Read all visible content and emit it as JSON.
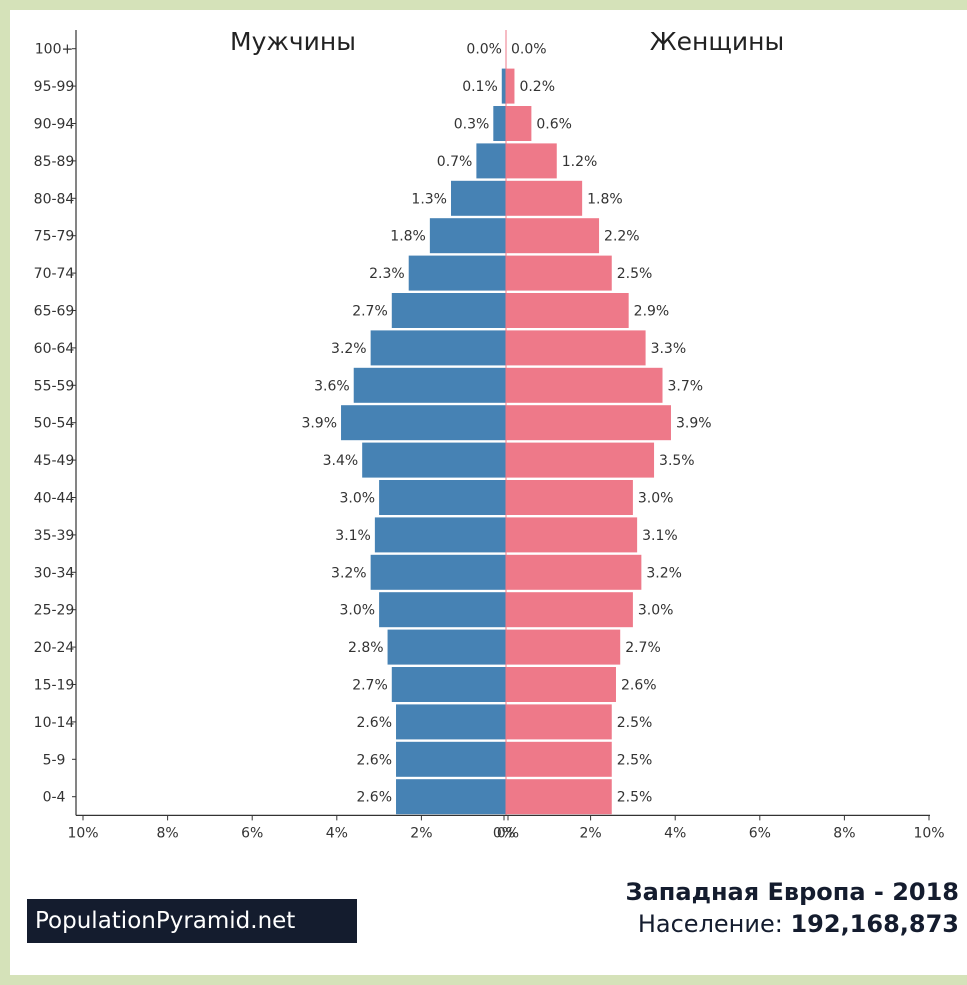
{
  "header": {
    "male_label": "Мужчины",
    "female_label": "Женщины"
  },
  "footer": {
    "brand": "PopulationPyramid.net",
    "title": "Западная Европа - 2018",
    "population_label": "Население:",
    "population_value": "192,168,873"
  },
  "colors": {
    "male": "#4682b4",
    "female": "#ee7989",
    "background": "#d5e2b9",
    "brand_bg": "#141c2e"
  },
  "chart_data": {
    "type": "bar",
    "orientation": "horizontal-pyramid",
    "categories": [
      "100+",
      "95-99",
      "90-94",
      "85-89",
      "80-84",
      "75-79",
      "70-74",
      "65-69",
      "60-64",
      "55-59",
      "50-54",
      "45-49",
      "40-44",
      "35-39",
      "30-34",
      "25-29",
      "20-24",
      "15-19",
      "10-14",
      "5-9",
      "0-4"
    ],
    "series": [
      {
        "name": "Мужчины",
        "values": [
          0.0,
          0.1,
          0.3,
          0.7,
          1.3,
          1.8,
          2.3,
          2.7,
          3.2,
          3.6,
          3.9,
          3.4,
          3.0,
          3.1,
          3.2,
          3.0,
          2.8,
          2.7,
          2.6,
          2.6,
          2.6
        ],
        "labels": [
          "0.0%",
          "0.1%",
          "0.3%",
          "0.7%",
          "1.3%",
          "1.8%",
          "2.3%",
          "2.7%",
          "3.2%",
          "3.6%",
          "3.9%",
          "3.4%",
          "3.0%",
          "3.1%",
          "3.2%",
          "3.0%",
          "2.8%",
          "2.7%",
          "2.6%",
          "2.6%",
          "2.6%"
        ]
      },
      {
        "name": "Женщины",
        "values": [
          0.0,
          0.2,
          0.6,
          1.2,
          1.8,
          2.2,
          2.5,
          2.9,
          3.3,
          3.7,
          3.9,
          3.5,
          3.0,
          3.1,
          3.2,
          3.0,
          2.7,
          2.6,
          2.5,
          2.5,
          2.5
        ],
        "labels": [
          "0.0%",
          "0.2%",
          "0.6%",
          "1.2%",
          "1.8%",
          "2.2%",
          "2.5%",
          "2.9%",
          "3.3%",
          "3.7%",
          "3.9%",
          "3.5%",
          "3.0%",
          "3.1%",
          "3.2%",
          "3.0%",
          "2.7%",
          "2.6%",
          "2.5%",
          "2.5%",
          "2.5%"
        ]
      }
    ],
    "x_ticks": [
      "10%",
      "8%",
      "6%",
      "4%",
      "2%",
      "0%",
      "0%",
      "2%",
      "4%",
      "6%",
      "8%",
      "10%"
    ],
    "xlim": [
      -10,
      10
    ],
    "title": "Западная Европа - 2018"
  }
}
